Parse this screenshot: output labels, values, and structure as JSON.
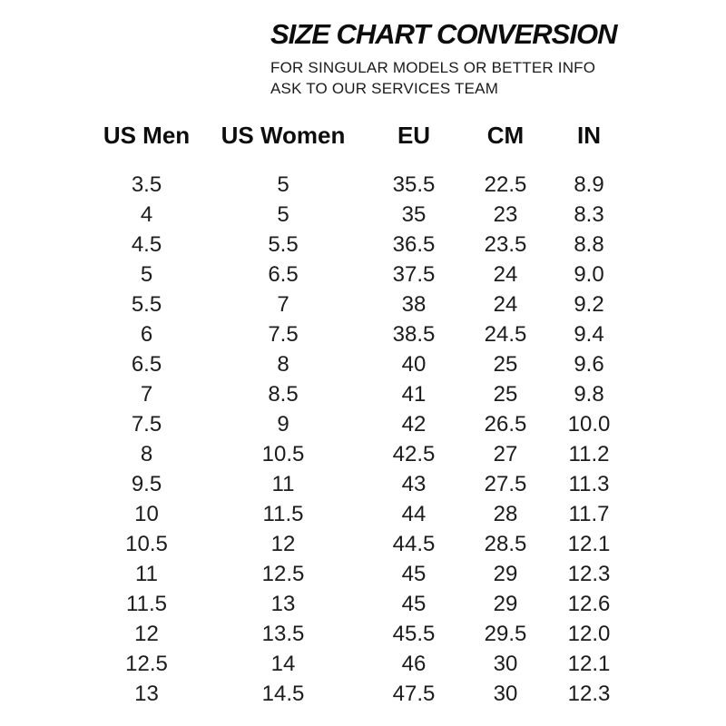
{
  "header": {
    "title": "SIZE CHART CONVERSION",
    "subtitle_lines": [
      "FOR SINGULAR MODELS OR BETTER INFO",
      "ASK TO OUR SERVICES TEAM"
    ]
  },
  "table": {
    "headers": [
      "US Men",
      "US Women",
      "EU",
      "CM",
      "IN"
    ],
    "rows": [
      [
        "3.5",
        "5",
        "35.5",
        "22.5",
        "8.9"
      ],
      [
        "4",
        "5",
        "35",
        "23",
        "8.3"
      ],
      [
        "4.5",
        "5.5",
        "36.5",
        "23.5",
        "8.8"
      ],
      [
        "5",
        "6.5",
        "37.5",
        "24",
        "9.0"
      ],
      [
        "5.5",
        "7",
        "38",
        "24",
        "9.2"
      ],
      [
        "6",
        "7.5",
        "38.5",
        "24.5",
        "9.4"
      ],
      [
        "6.5",
        "8",
        "40",
        "25",
        "9.6"
      ],
      [
        "7",
        "8.5",
        "41",
        "25",
        "9.8"
      ],
      [
        "7.5",
        "9",
        "42",
        "26.5",
        "10.0"
      ],
      [
        "8",
        "10.5",
        "42.5",
        "27",
        "11.2"
      ],
      [
        "9.5",
        "11",
        "43",
        "27.5",
        "11.3"
      ],
      [
        "10",
        "11.5",
        "44",
        "28",
        "11.7"
      ],
      [
        "10.5",
        "12",
        "44.5",
        "28.5",
        "12.1"
      ],
      [
        "11",
        "12.5",
        "45",
        "29",
        "12.3"
      ],
      [
        "11.5",
        "13",
        "45",
        "29",
        "12.6"
      ],
      [
        "12",
        "13.5",
        "45.5",
        "29.5",
        "12.0"
      ],
      [
        "12.5",
        "14",
        "46",
        "30",
        "12.1"
      ],
      [
        "13",
        "14.5",
        "47.5",
        "30",
        "12.3"
      ]
    ]
  },
  "colors": {
    "text": "#131313",
    "background": "#ffffff"
  }
}
